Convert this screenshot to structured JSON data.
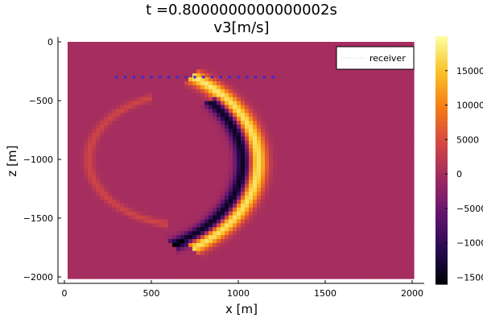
{
  "chart_data": {
    "type": "heatmap",
    "title": "t =0.8000000000000002s",
    "subtitle": "v3[m/s]",
    "xlabel": "x [m]",
    "ylabel": "z [m]",
    "xlim": [
      0,
      2000
    ],
    "ylim": [
      -2000,
      0
    ],
    "xticks": [
      0,
      500,
      1000,
      1500,
      2000
    ],
    "xtick_labels": [
      "0",
      "500",
      "1000",
      "1500",
      "2000"
    ],
    "yticks": [
      0,
      -500,
      -1000,
      -1500,
      -2000
    ],
    "ytick_labels": [
      "0",
      "−500",
      "−1000",
      "−1500",
      "−2000"
    ],
    "colorbar": {
      "range": [
        -16000,
        20000
      ],
      "ticks": [
        15000,
        10000,
        5000,
        0,
        -5000,
        -10000,
        -15000
      ],
      "tick_labels": [
        "15000",
        "10000",
        "5000",
        "0",
        "−5000",
        "−10000",
        "−15000"
      ],
      "colormap": "inferno",
      "colors": [
        "#000004",
        "#280b54",
        "#65156e",
        "#9f2a63",
        "#d44842",
        "#f57d15",
        "#fac228",
        "#fcffa4"
      ]
    },
    "field": {
      "description_values": "v3 wave-field amplitude in m/s; background near 0",
      "background_value": 0,
      "domain_x": [
        0,
        2000
      ],
      "domain_z": [
        -2000,
        0
      ],
      "wavefronts": [
        {
          "name": "main_front",
          "center": [
            210,
            -1025
          ],
          "radius": 900,
          "angle_range_deg": [
            -55,
            55
          ],
          "width": 55,
          "amplitude": 18000
        },
        {
          "name": "main_trough",
          "center": [
            210,
            -1025
          ],
          "radius": 820,
          "angle_range_deg": [
            -40,
            60
          ],
          "width": 45,
          "amplitude": -16000
        },
        {
          "name": "upper_faint",
          "center": [
            700,
            -1000
          ],
          "radius": 560,
          "angle_range_deg": [
            100,
            250
          ],
          "width": 30,
          "amplitude": 4000
        }
      ]
    },
    "legend": {
      "position": "top-right",
      "entries": [
        {
          "label": "receiver",
          "style": "dotted",
          "color": "#c8c8c8"
        }
      ]
    },
    "series": [
      {
        "name": "receiver",
        "kind": "markers",
        "color": "#3a2bd1",
        "x": [
          300,
          350,
          400,
          450,
          500,
          550,
          600,
          650,
          700,
          750,
          800,
          850,
          900,
          950,
          1000,
          1050,
          1100,
          1150,
          1200
        ],
        "z": [
          -300,
          -300,
          -300,
          -300,
          -300,
          -300,
          -300,
          -300,
          -300,
          -300,
          -300,
          -300,
          -300,
          -300,
          -300,
          -300,
          -300,
          -300,
          -300
        ]
      }
    ],
    "grid": false
  }
}
